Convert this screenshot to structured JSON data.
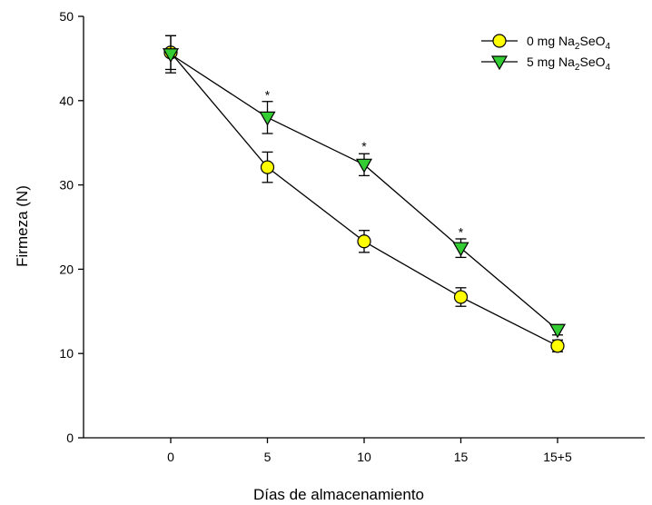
{
  "chart_data": {
    "type": "line",
    "xlabel": "Días de almacenamiento",
    "ylabel": "Firmeza (N)",
    "categories": [
      "0",
      "5",
      "10",
      "15",
      "15+5"
    ],
    "ylim": [
      0,
      50
    ],
    "yticks": [
      0,
      10,
      20,
      30,
      40,
      50
    ],
    "grid": false,
    "legend_position": "top-right",
    "series": [
      {
        "name_main": "0 mg Na",
        "name_sub1": "2",
        "name_mid": "SeO",
        "name_sub2": "4",
        "marker": "circle",
        "color": "#ffff00",
        "values": [
          45.7,
          32.1,
          23.3,
          16.7,
          10.9
        ],
        "errors": [
          2.0,
          1.8,
          1.3,
          1.1,
          0.7
        ]
      },
      {
        "name_main": "5 mg Na",
        "name_sub1": "2",
        "name_mid": "SeO",
        "name_sub2": "4",
        "marker": "triangle-down",
        "color": "#33cc33",
        "values": [
          45.5,
          38.0,
          32.4,
          22.5,
          12.8
        ],
        "errors": [
          2.2,
          1.9,
          1.3,
          1.1,
          0.6
        ]
      }
    ],
    "significance": [
      {
        "category": "5",
        "label": "*",
        "y": 40.8
      },
      {
        "category": "10",
        "label": "*",
        "y": 34.7
      },
      {
        "category": "15",
        "label": "*",
        "y": 24.5
      }
    ]
  }
}
